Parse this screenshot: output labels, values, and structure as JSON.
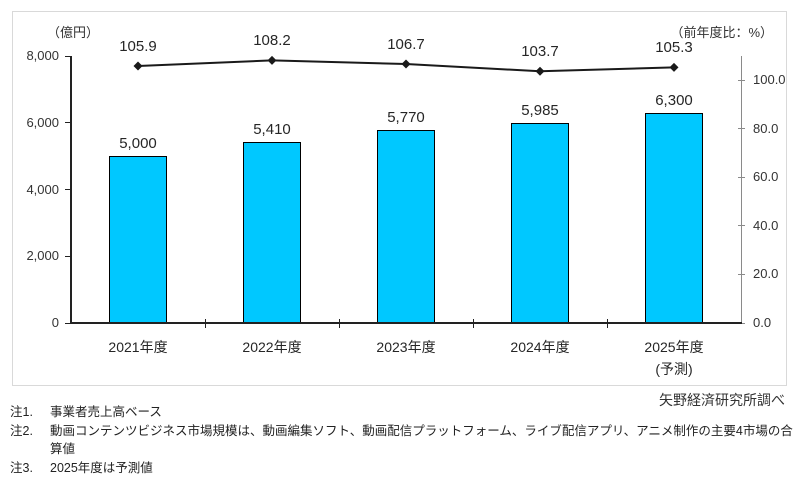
{
  "chart_data": {
    "type": "bar+line",
    "categories": [
      "2021年度",
      "2022年度",
      "2023年度",
      "2024年度",
      "2025年度"
    ],
    "category_sublabels": [
      "",
      "",
      "",
      "",
      "(予測)"
    ],
    "series": [
      {
        "name": "market-size-bars",
        "type": "bar",
        "axis": "left",
        "color": "#00c8ff",
        "border_color": "#000000",
        "values": [
          5000,
          5410,
          5770,
          5985,
          6300
        ],
        "labels": [
          "5,000",
          "5,410",
          "5,770",
          "5,985",
          "6,300"
        ]
      },
      {
        "name": "yoy-ratio-line",
        "type": "line",
        "axis": "right",
        "color": "#1a1a1a",
        "marker": "diamond",
        "values": [
          105.9,
          108.2,
          106.7,
          103.7,
          105.3
        ],
        "labels": [
          "105.9",
          "108.2",
          "106.7",
          "103.7",
          "105.3"
        ]
      }
    ],
    "left_axis": {
      "unit_label": "（億円）",
      "min": 0,
      "max": 8000,
      "ticks": [
        {
          "value": 0,
          "label": "0"
        },
        {
          "value": 2000,
          "label": "2,000"
        },
        {
          "value": 4000,
          "label": "4,000"
        },
        {
          "value": 6000,
          "label": "6,000"
        },
        {
          "value": 8000,
          "label": "8,000"
        }
      ]
    },
    "right_axis": {
      "unit_label": "（前年度比：%）",
      "min": 0,
      "max": 110,
      "ticks": [
        {
          "value": 0,
          "label": "0.0"
        },
        {
          "value": 20,
          "label": "20.0"
        },
        {
          "value": 40,
          "label": "40.0"
        },
        {
          "value": 60,
          "label": "60.0"
        },
        {
          "value": 80,
          "label": "80.0"
        },
        {
          "value": 100,
          "label": "100.0"
        }
      ]
    },
    "grid": false,
    "legend": "none"
  },
  "source_credit": "矢野経済研究所調べ",
  "notes": [
    {
      "prefix": "注1.",
      "text": "事業者売上高ベース"
    },
    {
      "prefix": "注2.",
      "text": "動画コンテンツビジネス市場規模は、動画編集ソフト、動画配信プラットフォーム、ライブ配信アプリ、アニメ制作の主要4市場の合算値"
    },
    {
      "prefix": "注3.",
      "text": "2025年度は予測値"
    }
  ]
}
